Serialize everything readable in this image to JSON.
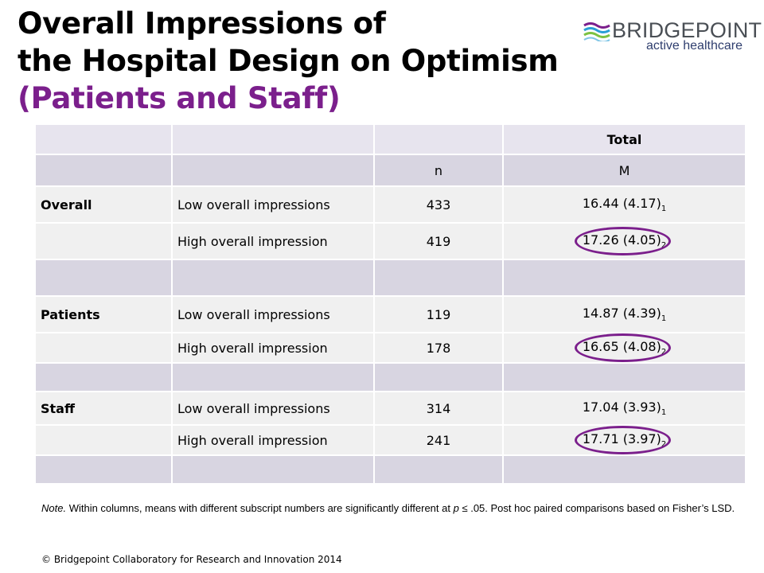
{
  "title": {
    "line1": "Overall Impressions of",
    "line2": "the Hospital Design on Optimism",
    "line3": "(Patients and Staff)"
  },
  "logo": {
    "name": "BRIDGEPOINT",
    "tagline": "active healthcare",
    "icon": "wave-stripes-icon",
    "colors": [
      "#7b1f8c",
      "#2a9fd6",
      "#7cc243"
    ]
  },
  "table": {
    "group_header": "Total",
    "col_n": "n",
    "col_m": "M",
    "rows": [
      {
        "group": "Overall",
        "label": "Low overall impressions",
        "n": "433",
        "mean": "16.44 (4.17)",
        "sub": "1",
        "circled": false
      },
      {
        "group": "",
        "label": "High overall impression",
        "n": "419",
        "mean": "17.26 (4.05)",
        "sub": "2",
        "circled": true
      },
      {
        "group": "Patients",
        "label": "Low overall impressions",
        "n": "119",
        "mean": "14.87 (4.39)",
        "sub": "1",
        "circled": false
      },
      {
        "group": "",
        "label": "High overall impression",
        "n": "178",
        "mean": "16.65 (4.08)",
        "sub": "2",
        "circled": true
      },
      {
        "group": "Staff",
        "label": "Low overall impressions",
        "n": "314",
        "mean": "17.04 (3.93)",
        "sub": "1",
        "circled": false
      },
      {
        "group": "",
        "label": "High overall impression",
        "n": "241",
        "mean": "17.71 (3.97)",
        "sub": "2",
        "circled": true
      }
    ]
  },
  "note": {
    "label": "Note.",
    "text_a": " Within columns, means with different subscript numbers are significantly different at ",
    "p": "p",
    "text_b": " ≤ .05.  Post hoc paired comparisons based on Fisher’s LSD."
  },
  "copyright": "© Bridgepoint Collaboratory for Research and Innovation 2014",
  "colors": {
    "accent": "#7b1f8c",
    "row_shade": "#d8d5e1",
    "row_light": "#f0f0f0"
  }
}
